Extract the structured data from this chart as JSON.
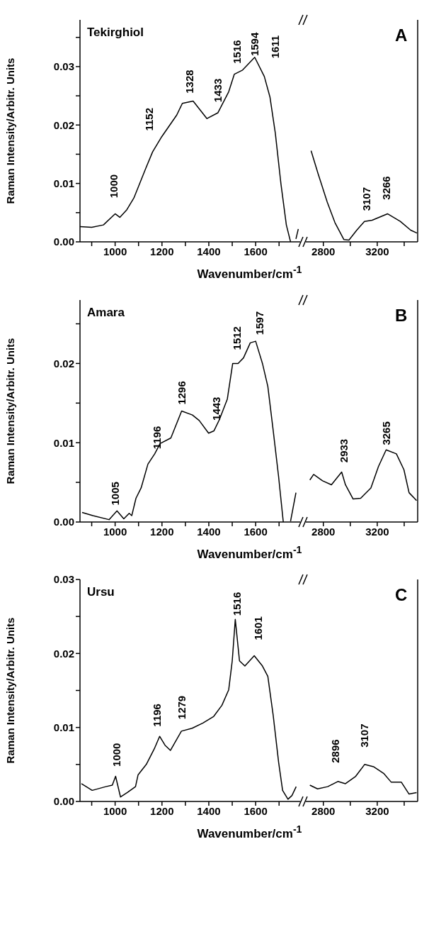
{
  "chart_data": [
    {
      "type": "line",
      "title": "Tekirghiol",
      "ylabel": "Raman Intensity/Arbitr. Units",
      "xlabel": "Wavenumber/cm$^{-1}$",
      "xlim": [
        850,
        1790
      ],
      "xticks": [
        {
          "value": 900,
          "label": null
        },
        1000,
        {
          "value": 1100,
          "label": null
        },
        1200,
        {
          "value": 1300,
          "label": null
        },
        1400,
        {
          "value": 1500,
          "label": null
        },
        1600,
        {
          "value": 1700,
          "label": null
        }
      ],
      "ylim": [
        0,
        0.038
      ],
      "yticks": [
        {
          "value": 0,
          "label": "0.00"
        },
        {
          "value": 0.005,
          "label": null
        },
        0.01,
        {
          "value": 0.015,
          "label": null
        },
        0.02,
        {
          "value": 0.025,
          "label": null
        },
        0.03,
        {
          "value": 0.035,
          "label": null
        }
      ],
      "x": [
        850,
        900,
        950,
        1000,
        1020,
        1050,
        1080,
        1100,
        1130,
        1160,
        1199,
        1263,
        1287,
        1333,
        1392,
        1439,
        1485,
        1509,
        1544,
        1596,
        1637,
        1661,
        1684,
        1708,
        1731,
        1749,
        1760,
        1772,
        1782
      ],
      "series": [
        {
          "color": "#000000",
          "values": [
            0.0026,
            0.0025,
            0.0029,
            0.0048,
            0.0042,
            0.0055,
            0.0075,
            0.0095,
            0.0125,
            0.0154,
            0.018,
            0.0217,
            0.0237,
            0.0241,
            0.0211,
            0.0221,
            0.0257,
            0.0287,
            0.0294,
            0.0316,
            0.0283,
            0.0248,
            0.0186,
            0.0099,
            0.0029,
            0,
            null,
            0.0005,
            0.0022
          ]
        }
      ],
      "annotations": [
        "1000",
        "1152",
        "1328",
        "1433",
        "1516",
        "1594",
        "1611"
      ]
    },
    {
      "type": "line",
      "tick_labels": "x",
      "xlim": [
        2670,
        3500
      ],
      "xticks": [
        2800,
        {
          "value": 3000,
          "label": null
        },
        3200,
        {
          "value": 3400,
          "label": null
        }
      ],
      "ylim": [
        0,
        0.038
      ],
      "x": [
        2709,
        2762,
        2829,
        2886,
        2952,
        2990,
        3048,
        3105,
        3162,
        3276,
        3371,
        3448,
        3495
      ],
      "series": [
        {
          "color": "#000000",
          "values": [
            0.0156,
            0.0116,
            0.0068,
            0.0033,
            0.0004,
            0.0003,
            0.002,
            0.0035,
            0.0037,
            0.0048,
            0.0035,
            0.002,
            0.0015
          ]
        }
      ],
      "annotations": [
        "A",
        "3107",
        "3266"
      ]
    },
    {
      "type": "line",
      "title": "Amara",
      "ylabel": "Raman Intensity/Arbitr. Units",
      "xlabel": "Wavenumber/cm$^{-1}$",
      "xlim": [
        850,
        1790
      ],
      "xticks": [
        {
          "value": 900,
          "label": null
        },
        1000,
        {
          "value": 1100,
          "label": null
        },
        1200,
        {
          "value": 1300,
          "label": null
        },
        1400,
        {
          "value": 1500,
          "label": null
        },
        1600,
        {
          "value": 1700,
          "label": null
        }
      ],
      "ylim": [
        0,
        0.028
      ],
      "yticks": [
        {
          "value": 0,
          "label": "0.00"
        },
        {
          "value": 0.005,
          "label": null
        },
        0.01,
        {
          "value": 0.015,
          "label": null
        },
        0.02,
        {
          "value": 0.025,
          "label": null
        }
      ],
      "x": [
        859,
        905,
        974,
        1008,
        1037,
        1060,
        1071,
        1089,
        1111,
        1140,
        1169,
        1192,
        1238,
        1284,
        1330,
        1359,
        1399,
        1422,
        1445,
        1479,
        1502,
        1525,
        1548,
        1577,
        1600,
        1629,
        1652,
        1675,
        1698,
        1718,
        1735,
        1749,
        1772
      ],
      "series": [
        {
          "color": "#000000",
          "values": [
            0.0012,
            0.0008,
            0.0003,
            0.0014,
            0.0004,
            0.0011,
            0.0008,
            0.003,
            0.0043,
            0.0073,
            0.0086,
            0.0099,
            0.0106,
            0.014,
            0.0135,
            0.0128,
            0.0112,
            0.0115,
            0.0129,
            0.0155,
            0.02,
            0.02,
            0.0207,
            0.0226,
            0.0228,
            0.02,
            0.0171,
            0.0115,
            0.0057,
            0,
            null,
            0.0001,
            0.0037
          ]
        }
      ],
      "annotations": [
        "1005",
        "1196",
        "1296",
        "1443",
        "1512",
        "1597"
      ]
    },
    {
      "type": "line",
      "tick_labels": "x",
      "xlim": [
        2670,
        3500
      ],
      "xticks": [
        2800,
        {
          "value": 3000,
          "label": null
        },
        3200,
        {
          "value": 3400,
          "label": null
        }
      ],
      "ylim": [
        0,
        0.028
      ],
      "x": [
        2700,
        2728,
        2794,
        2860,
        2936,
        2964,
        3021,
        3077,
        3153,
        3209,
        3266,
        3342,
        3398,
        3436,
        3492
      ],
      "series": [
        {
          "color": "#000000",
          "values": [
            0.0053,
            0.006,
            0.0052,
            0.0047,
            0.0063,
            0.0047,
            0.0029,
            0.003,
            0.0043,
            0.007,
            0.0091,
            0.0086,
            0.0066,
            0.0037,
            0.0027
          ]
        }
      ],
      "annotations": [
        "B",
        "2933",
        "3265"
      ]
    },
    {
      "type": "line",
      "title": "Ursu",
      "ylabel": "Raman Intensity/Arbitr. Units",
      "xlabel": "Wavenumber/cm$^{-1}$",
      "xlim": [
        850,
        1790
      ],
      "xticks": [
        {
          "value": 900,
          "label": null
        },
        1000,
        {
          "value": 1100,
          "label": null
        },
        1200,
        {
          "value": 1300,
          "label": null
        },
        1400,
        {
          "value": 1500,
          "label": null
        },
        1600,
        {
          "value": 1700,
          "label": null
        }
      ],
      "ylim": [
        0,
        0.03
      ],
      "yticks": [
        {
          "value": 0,
          "label": "0.00"
        },
        {
          "value": 0.005,
          "label": null
        },
        0.01,
        {
          "value": 0.015,
          "label": null
        },
        0.02,
        {
          "value": 0.025,
          "label": null
        },
        0.03
      ],
      "x": [
        856,
        902,
        960,
        988,
        1002,
        1023,
        1052,
        1087,
        1098,
        1133,
        1167,
        1190,
        1213,
        1236,
        1283,
        1329,
        1375,
        1421,
        1456,
        1485,
        1500,
        1513,
        1531,
        1554,
        1594,
        1629,
        1652,
        1675,
        1698,
        1715,
        1738,
        1755,
        1773
      ],
      "series": [
        {
          "color": "#000000",
          "values": [
            0.0024,
            0.0015,
            0.002,
            0.0022,
            0.0034,
            0.0006,
            0.0012,
            0.002,
            0.0036,
            0.005,
            0.0071,
            0.0088,
            0.0076,
            0.0069,
            0.0095,
            0.0099,
            0.0106,
            0.0115,
            0.013,
            0.0151,
            0.019,
            0.0246,
            0.019,
            0.0183,
            0.0197,
            0.0183,
            0.0169,
            0.0116,
            0.0053,
            0.0015,
            0.0003,
            0.0008,
            0.002
          ]
        }
      ],
      "annotations": [
        "1000",
        "1196",
        "1279",
        "1516",
        "1601"
      ]
    },
    {
      "type": "line",
      "tick_labels": "x",
      "xlim": [
        2670,
        3500
      ],
      "xticks": [
        2800,
        {
          "value": 3000,
          "label": null
        },
        3200,
        {
          "value": 3400,
          "label": null
        }
      ],
      "ylim": [
        0,
        0.03
      ],
      "x": [
        2700,
        2757,
        2832,
        2908,
        2964,
        3040,
        3106,
        3172,
        3247,
        3304,
        3379,
        3436,
        3492
      ],
      "series": [
        {
          "color": "#000000",
          "values": [
            0.0022,
            0.0017,
            0.002,
            0.0027,
            0.0024,
            0.0034,
            0.005,
            0.0047,
            0.0038,
            0.0026,
            0.0026,
            0.001,
            0.0012
          ]
        }
      ],
      "annotations": [
        "C",
        "2896",
        "3107"
      ]
    }
  ]
}
